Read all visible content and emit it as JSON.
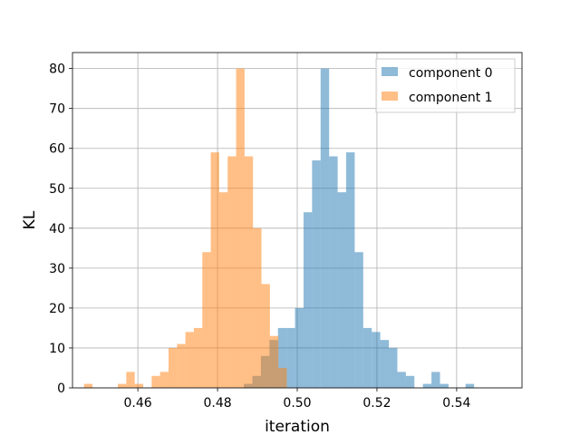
{
  "chart_data": {
    "type": "histogram",
    "xlabel": "iteration",
    "ylabel": "KL",
    "xlim": [
      0.4436,
      0.5564
    ],
    "ylim": [
      0,
      84
    ],
    "xticks": [
      0.46,
      0.48,
      0.5,
      0.52,
      0.54
    ],
    "xtick_labels": [
      "0.46",
      "0.48",
      "0.50",
      "0.52",
      "0.54"
    ],
    "yticks": [
      0,
      10,
      20,
      30,
      40,
      50,
      60,
      70,
      80
    ],
    "ytick_labels": [
      "0",
      "10",
      "20",
      "30",
      "40",
      "50",
      "60",
      "70",
      "80"
    ],
    "grid": true,
    "legend_position": "top-right",
    "series": [
      {
        "name": "component 0",
        "color": "#1f77b4",
        "alpha": 0.5,
        "bin_start": 0.4866,
        "bin_width": 0.00214,
        "counts": [
          1,
          3,
          8,
          12,
          15,
          15,
          20,
          44,
          57,
          80,
          58,
          49,
          59,
          34,
          15,
          14,
          12,
          10,
          4,
          3,
          0,
          1,
          4,
          1,
          0,
          0,
          1
        ]
      },
      {
        "name": "component 1",
        "color": "#ff7f0e",
        "alpha": 0.5,
        "bin_start": 0.4465,
        "bin_width": 0.00212,
        "counts": [
          1,
          0,
          0,
          0,
          1,
          4,
          1,
          0,
          3,
          4,
          10,
          11,
          14,
          15,
          34,
          59,
          49,
          58,
          80,
          58,
          40,
          26,
          13,
          5,
          0,
          0,
          0
        ]
      }
    ]
  }
}
